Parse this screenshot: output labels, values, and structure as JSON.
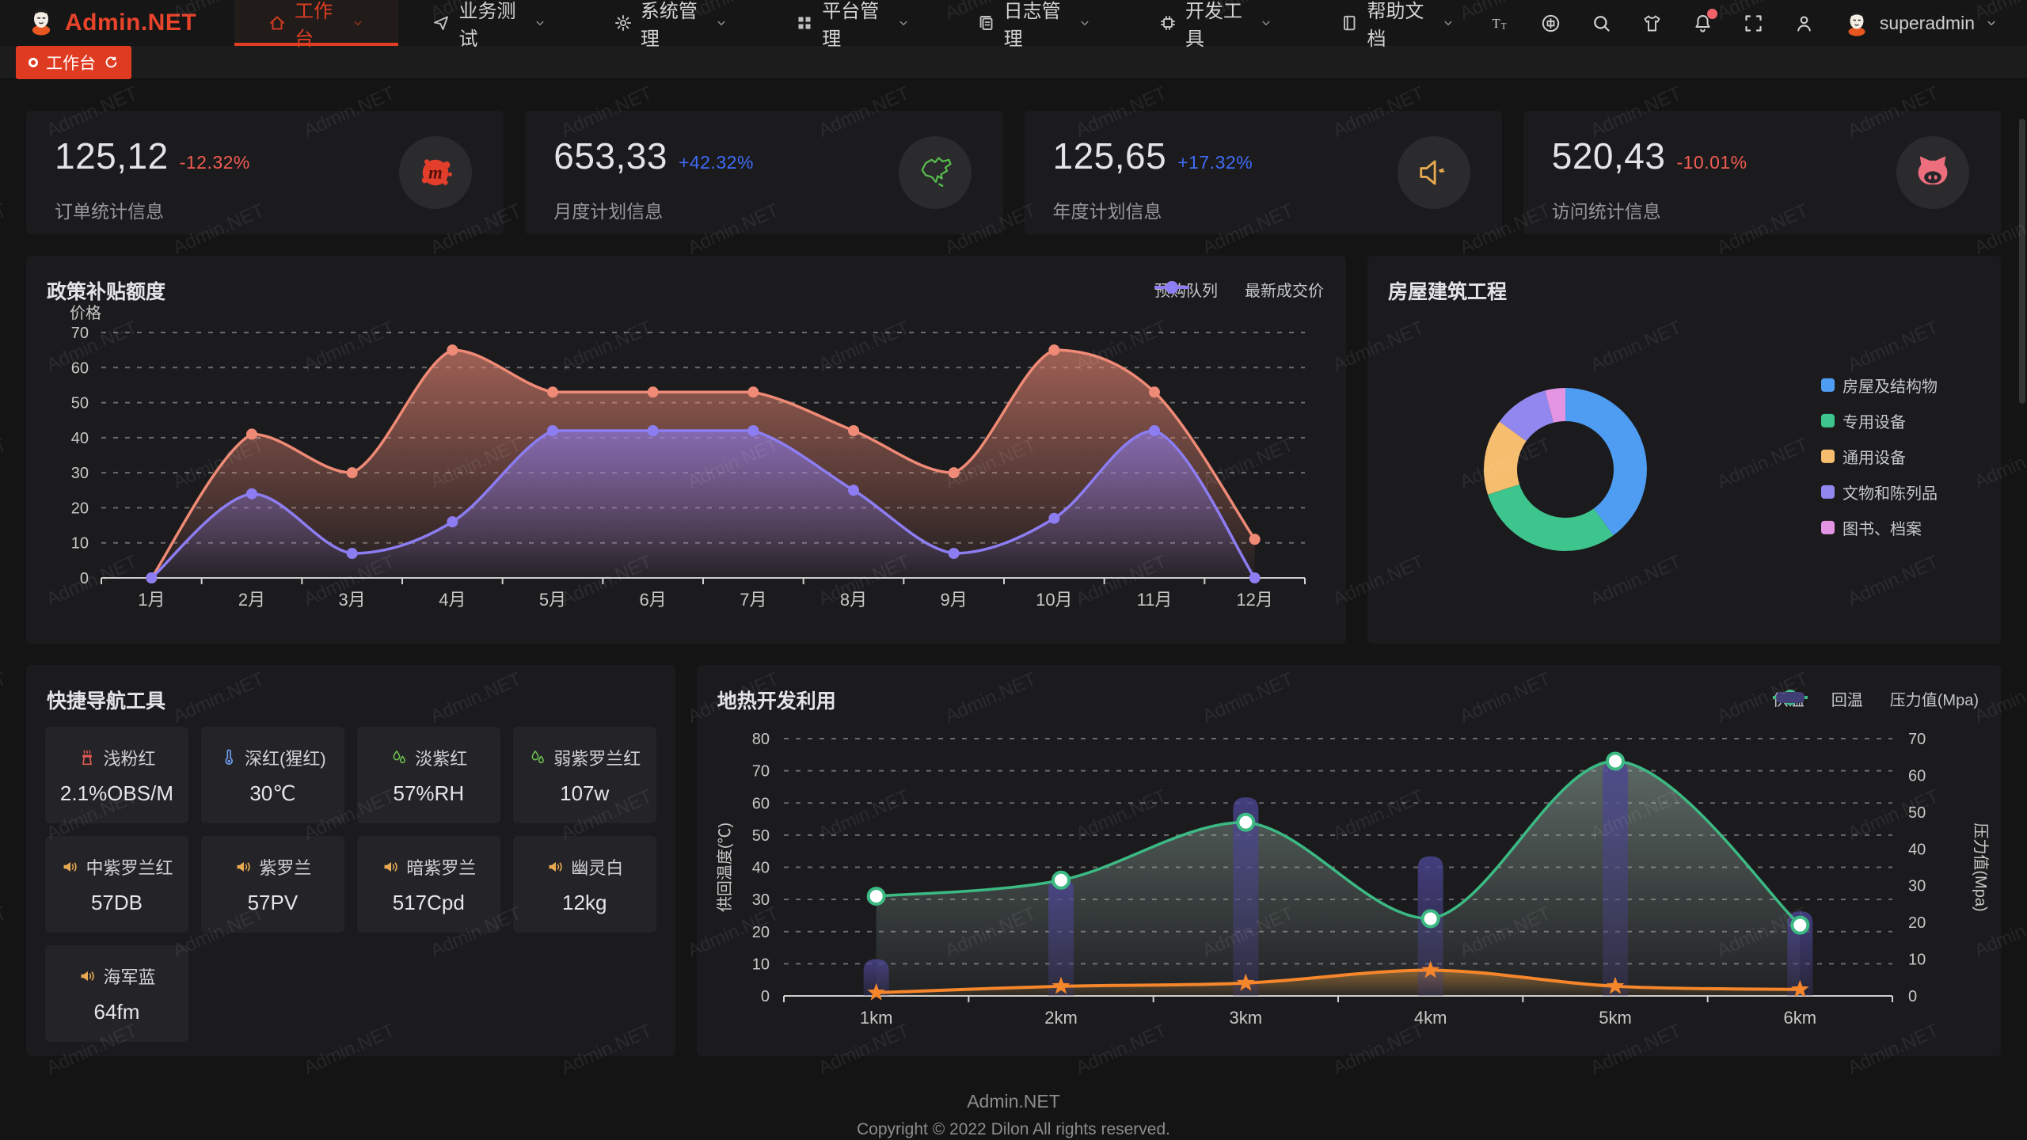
{
  "watermark": "Admin.NET",
  "navbar": {
    "logo_text": "Admin.NET",
    "menu": [
      {
        "label": "工作台",
        "icon": "home",
        "active": true,
        "caret": true
      },
      {
        "label": "业务测试",
        "icon": "send",
        "active": false,
        "caret": true
      },
      {
        "label": "系统管理",
        "icon": "gear",
        "active": false,
        "caret": true
      },
      {
        "label": "平台管理",
        "icon": "grid",
        "active": false,
        "caret": true
      },
      {
        "label": "日志管理",
        "icon": "copydoc",
        "active": false,
        "caret": true
      },
      {
        "label": "开发工具",
        "icon": "chip",
        "active": false,
        "caret": true
      },
      {
        "label": "帮助文档",
        "icon": "book",
        "active": false,
        "caret": true
      }
    ],
    "actions": [
      {
        "name": "font-size",
        "icon": "fontsize"
      },
      {
        "name": "language",
        "icon": "language"
      },
      {
        "name": "search",
        "icon": "search"
      },
      {
        "name": "theme",
        "icon": "tshirt"
      },
      {
        "name": "notifications",
        "icon": "bell",
        "badge": true
      },
      {
        "name": "fullscreen",
        "icon": "fullscreen"
      },
      {
        "name": "profile",
        "icon": "person"
      }
    ],
    "user": "superadmin"
  },
  "tabbar": {
    "active_tab": "工作台"
  },
  "stats": [
    {
      "value": "125,12",
      "delta": "-12.32%",
      "delta_color": "#f25c52",
      "label": "订单统计信息",
      "icon": "meetup"
    },
    {
      "value": "653,33",
      "delta": "+42.32%",
      "delta_color": "#3f6bf5",
      "label": "月度计划信息",
      "icon": "china-map"
    },
    {
      "value": "125,65",
      "delta": "+17.32%",
      "delta_color": "#3f6bf5",
      "label": "年度计划信息",
      "icon": "speaker-big"
    },
    {
      "value": "520,43",
      "delta": "-10.01%",
      "delta_color": "#f25c52",
      "label": "访问统计信息",
      "icon": "cat"
    }
  ],
  "chart_data": [
    {
      "type": "area",
      "title": "政策补贴额度",
      "ylabel": "价格",
      "ylim": [
        0,
        70
      ],
      "ystep": 10,
      "grid": "dashed",
      "legend_position": "top-right",
      "categories": [
        "1月",
        "2月",
        "3月",
        "4月",
        "5月",
        "6月",
        "7月",
        "8月",
        "9月",
        "10月",
        "11月",
        "12月"
      ],
      "series": [
        {
          "name": "预购队列",
          "color": "#ef8a76",
          "values": [
            0,
            41,
            30,
            65,
            53,
            53,
            53,
            42,
            30,
            65,
            53,
            11
          ]
        },
        {
          "name": "最新成交价",
          "color": "#8d7df2",
          "values": [
            0,
            24,
            7,
            16,
            42,
            42,
            42,
            25,
            7,
            17,
            42,
            0
          ]
        }
      ]
    },
    {
      "type": "pie",
      "title": "房屋建筑工程",
      "donut": true,
      "legend_position": "right",
      "segments": [
        {
          "label": "房屋及结构物",
          "value": 40,
          "color": "#4f9df2"
        },
        {
          "label": "专用设备",
          "value": 30,
          "color": "#3ec48d"
        },
        {
          "label": "通用设备",
          "value": 15,
          "color": "#f6bd6e"
        },
        {
          "label": "文物和陈列品",
          "value": 11,
          "color": "#9187ee"
        },
        {
          "label": "图书、档案",
          "value": 4,
          "color": "#e394e3"
        }
      ]
    },
    {
      "type": "line+bar",
      "title": "地热开发利用",
      "categories": [
        "1km",
        "2km",
        "3km",
        "4km",
        "5km",
        "6km"
      ],
      "left_axis": {
        "label": "供回温度(℃)",
        "range": [
          0,
          80
        ],
        "step": 10
      },
      "right_axis": {
        "label": "压力值(Mpa)",
        "range": [
          0,
          70
        ],
        "step": 10
      },
      "grid": "dashed",
      "legend_position": "top-right",
      "series": [
        {
          "name": "供温",
          "type": "line",
          "axis": "left",
          "marker": "star",
          "color": "#f5862b",
          "values": [
            1,
            3,
            4,
            8,
            3,
            2
          ]
        },
        {
          "name": "回温",
          "type": "line",
          "axis": "left",
          "marker": "circle",
          "color": "#3cba83",
          "values": [
            31,
            36,
            54,
            24,
            73,
            22
          ]
        },
        {
          "name": "压力值(Mpa)",
          "type": "bar",
          "axis": "right",
          "color": "#4a4585",
          "values": [
            10,
            32,
            54,
            38,
            64,
            23
          ]
        }
      ]
    }
  ],
  "quicknav": {
    "title": "快捷导航工具",
    "items": [
      {
        "name": "浅粉红",
        "value": "2.1%OBS/M",
        "icon": "heater",
        "icon_color": "#e05b52"
      },
      {
        "name": "深红(猩红)",
        "value": "30℃",
        "icon": "thermometer",
        "icon_color": "#6f9bf0"
      },
      {
        "name": "淡紫红",
        "value": "57%RH",
        "icon": "drops",
        "icon_color": "#6cbf4e"
      },
      {
        "name": "弱紫罗兰红",
        "value": "107w",
        "icon": "drops",
        "icon_color": "#6cbf4e"
      },
      {
        "name": "中紫罗兰红",
        "value": "57DB",
        "icon": "speaker",
        "icon_color": "#e8a952"
      },
      {
        "name": "紫罗兰",
        "value": "57PV",
        "icon": "speaker",
        "icon_color": "#e8a952"
      },
      {
        "name": "暗紫罗兰",
        "value": "517Cpd",
        "icon": "speaker",
        "icon_color": "#e8a952"
      },
      {
        "name": "幽灵白",
        "value": "12kg",
        "icon": "speaker",
        "icon_color": "#e8a952"
      },
      {
        "name": "海军蓝",
        "value": "64fm",
        "icon": "speaker",
        "icon_color": "#e8a952"
      }
    ]
  },
  "footer": {
    "line1": "Admin.NET",
    "line2": "Copyright © 2022 Dilon All rights reserved."
  }
}
